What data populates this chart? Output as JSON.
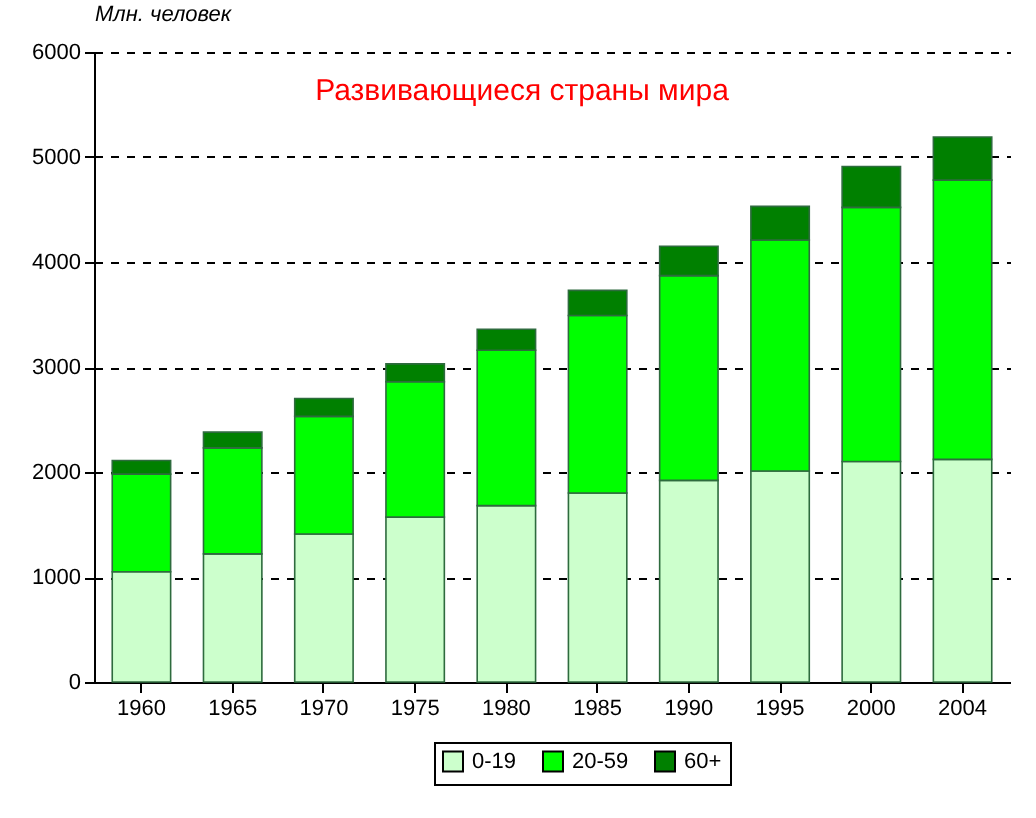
{
  "chart_data": {
    "type": "bar",
    "title": "Развивающиеся страны мира",
    "ylabel": "Млн. человек",
    "categories": [
      "1960",
      "1965",
      "1970",
      "1975",
      "1980",
      "1985",
      "1990",
      "1995",
      "2000",
      "2004"
    ],
    "stacked": true,
    "series": [
      {
        "name": "0-19",
        "color": "#ccffcc",
        "values": [
          1050,
          1220,
          1410,
          1570,
          1680,
          1800,
          1920,
          2010,
          2100,
          2120
        ]
      },
      {
        "name": "20-59",
        "color": "#00ff00",
        "values": [
          930,
          1010,
          1120,
          1290,
          1480,
          1690,
          1950,
          2200,
          2420,
          2660
        ]
      },
      {
        "name": "60+",
        "color": "#008000",
        "values": [
          130,
          150,
          170,
          170,
          200,
          240,
          280,
          320,
          390,
          410
        ]
      }
    ],
    "ylim": [
      0,
      6000
    ],
    "yticks": [
      0,
      1000,
      2000,
      3000,
      4000,
      5000,
      6000
    ],
    "grid": "y",
    "legend": "bottom"
  }
}
